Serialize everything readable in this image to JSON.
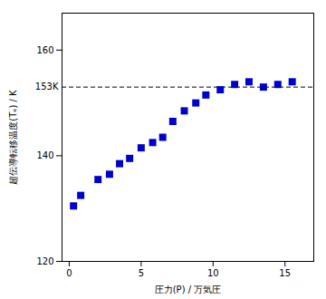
{
  "chart_data": {
    "type": "scatter",
    "x": [
      0.3,
      0.8,
      2.0,
      2.8,
      3.5,
      4.2,
      5.0,
      5.8,
      6.5,
      7.2,
      8.0,
      8.8,
      9.5,
      10.5,
      11.5,
      12.5,
      13.5,
      14.5,
      15.5
    ],
    "values": [
      130.5,
      132.5,
      135.5,
      136.5,
      138.5,
      139.5,
      141.5,
      142.5,
      143.5,
      146.5,
      148.5,
      150.0,
      151.5,
      152.5,
      153.5,
      154.0,
      153.0,
      153.5,
      154.0
    ],
    "color": "#0000CC",
    "marker": "square",
    "xlabel": "圧力(P) / 万気圧",
    "ylabel": "超伝導転移温度(Tₑ) / K",
    "xlim": [
      -0.5,
      17
    ],
    "ylim": [
      120,
      167
    ],
    "xticks": [
      0,
      5,
      10,
      15
    ],
    "yticks": [
      120,
      140,
      160
    ],
    "grid": false,
    "hline": {
      "y": 153,
      "label": "153K",
      "color": "black",
      "line_style": "dashed"
    }
  }
}
